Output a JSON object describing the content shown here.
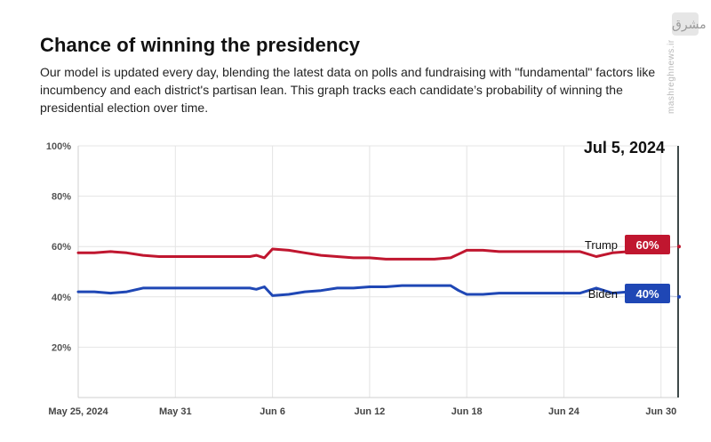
{
  "header": {
    "title": "Chance of winning the presidency",
    "description": "Our model is updated every day, blending the latest data on polls and fundraising with \"fundamental\" factors like incumbency and each district's partisan lean. This graph tracks each candidate’s probability of winning the presidential election over time."
  },
  "watermark": {
    "text": "mashreghnews.ir",
    "logo": "مشرق"
  },
  "colors": {
    "trump": "#c0162f",
    "biden": "#1f47b5",
    "grid": "#e4e4e4",
    "marker": "#3f4a4a"
  },
  "chart_data": {
    "type": "line",
    "title": "Chance of winning the presidency",
    "xlabel": "",
    "ylabel": "",
    "x_domain": [
      0,
      37
    ],
    "ylim": [
      0,
      100
    ],
    "y_ticks": [
      {
        "value": 20,
        "label": "20%"
      },
      {
        "value": 40,
        "label": "40%"
      },
      {
        "value": 60,
        "label": "60%"
      },
      {
        "value": 80,
        "label": "80%"
      },
      {
        "value": 100,
        "label": "100%"
      }
    ],
    "x_ticks": [
      {
        "day": 0,
        "label": "May 25, 2024"
      },
      {
        "day": 6,
        "label": "May 31"
      },
      {
        "day": 12,
        "label": "Jun 6"
      },
      {
        "day": 18,
        "label": "Jun 12"
      },
      {
        "day": 24,
        "label": "Jun 18"
      },
      {
        "day": 30,
        "label": "Jun 24"
      },
      {
        "day": 36,
        "label": "Jun 30"
      }
    ],
    "current_date_label": "Jul 5, 2024",
    "series": [
      {
        "name": "Trump",
        "current_label": "60%",
        "days": [
          0,
          1,
          2,
          3,
          4,
          5,
          6,
          7,
          8,
          9,
          10,
          10.6,
          11,
          11.5,
          12,
          13,
          14,
          15,
          16,
          17,
          18,
          19,
          20,
          21,
          22,
          23,
          23.5,
          24,
          25,
          26,
          27,
          28,
          29,
          30,
          31,
          32,
          33,
          34
        ],
        "values": [
          57.5,
          57.5,
          58.0,
          57.5,
          56.5,
          56.0,
          56.0,
          56.0,
          56.0,
          56.0,
          56.0,
          56.0,
          56.5,
          55.5,
          59.0,
          58.5,
          57.5,
          56.5,
          56.0,
          55.5,
          55.5,
          55.0,
          55.0,
          55.0,
          55.0,
          55.5,
          57.0,
          58.5,
          58.5,
          58.0,
          58.0,
          58.0,
          58.0,
          58.0,
          58.0,
          56.0,
          57.5,
          58.0
        ]
      },
      {
        "name": "Biden",
        "current_label": "40%",
        "days": [
          0,
          1,
          2,
          3,
          4,
          5,
          6,
          7,
          8,
          9,
          10,
          10.6,
          11,
          11.5,
          12,
          13,
          14,
          15,
          16,
          17,
          18,
          19,
          20,
          21,
          22,
          23,
          23.5,
          24,
          25,
          26,
          27,
          28,
          29,
          30,
          31,
          32,
          33,
          34
        ],
        "values": [
          42.0,
          42.0,
          41.5,
          42.0,
          43.5,
          43.5,
          43.5,
          43.5,
          43.5,
          43.5,
          43.5,
          43.5,
          43.0,
          44.0,
          40.5,
          41.0,
          42.0,
          42.5,
          43.5,
          43.5,
          44.0,
          44.0,
          44.5,
          44.5,
          44.5,
          44.5,
          42.5,
          41.0,
          41.0,
          41.5,
          41.5,
          41.5,
          41.5,
          41.5,
          41.5,
          43.5,
          41.5,
          42.0
        ]
      }
    ]
  }
}
